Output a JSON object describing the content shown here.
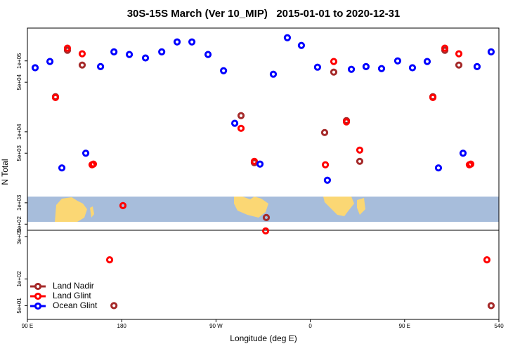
{
  "chart_data": [
    {
      "type": "scatter",
      "title": "30S-15S March (Ver 10_MIP)   2015-01-01 to 2020-12-31",
      "x_label": "Longitude (deg E)",
      "y_label": "N Total",
      "log_y": true,
      "xlim": [
        90,
        540
      ],
      "ylim": [
        410,
        290000
      ],
      "yticks": [
        {
          "value": 500,
          "label": "5e+02"
        },
        {
          "value": 1000,
          "label": "1e+03"
        },
        {
          "value": 5000,
          "label": "5e+03"
        },
        {
          "value": 10000,
          "label": "1e+04"
        },
        {
          "value": 50000,
          "label": "5e+04"
        },
        {
          "value": 100000,
          "label": "1e+05"
        }
      ],
      "series": [
        {
          "name": "Land Nadir",
          "color": "#a52a2a",
          "x": [
            116.8,
            128.2,
            142.3,
            293.9,
            306.6,
            318,
            373.7,
            382.4,
            394.5,
            407.2,
            477,
            488.4,
            501.8
          ],
          "values": [
            31300,
            141000,
            87300,
            16900,
            3670,
            620,
            9770,
            69500,
            14400,
            3840,
            31300,
            141000,
            87300
          ]
        },
        {
          "name": "Land Glint",
          "color": "#ff0000",
          "x": [
            116.8,
            128.2,
            142.3,
            151.7,
            153,
            181.2,
            293.9,
            306.6,
            374.4,
            382.4,
            394.5,
            407.2,
            477,
            488.4,
            501.8,
            511.8,
            513.2
          ],
          "values": [
            30500,
            151000,
            126000,
            3430,
            3510,
            912,
            11200,
            3840,
            3430,
            98000,
            13800,
            5530,
            30500,
            151000,
            126000,
            3430,
            3510
          ]
        },
        {
          "name": "Ocean Glint",
          "color": "#0000ff",
          "x": [
            97.4,
            111.5,
            122.9,
            145.7,
            159.8,
            172.6,
            187.3,
            202.7,
            218.2,
            232.9,
            247,
            262.4,
            277.2,
            287.9,
            312,
            324.7,
            338.1,
            351.5,
            366.9,
            376.3,
            399.2,
            413.2,
            428,
            443.4,
            457.5,
            471.6,
            482.3,
            505.8,
            519.2,
            532.6
          ],
          "values": [
            80000,
            98000,
            3100,
            5000,
            83000,
            134000,
            123000,
            110000,
            134000,
            185000,
            185000,
            123000,
            72600,
            13200,
            3510,
            64900,
            212000,
            165000,
            81500,
            2080,
            76000,
            83000,
            77800,
            100000,
            80000,
            98000,
            3100,
            5000,
            83000,
            134000
          ]
        }
      ]
    },
    {
      "type": "scatter",
      "log_y": true,
      "legend": "lower-left",
      "xlim": [
        90,
        540
      ],
      "ylim": [
        35,
        353
      ],
      "xticks": [
        {
          "value": 90,
          "label": "90 E"
        },
        180,
        {
          "value": 270,
          "label": "90 W"
        },
        {
          "value": 360,
          "label": "0"
        },
        {
          "value": 450,
          "label": "90 E"
        },
        540
      ],
      "yticks": [
        {
          "value": 50,
          "label": "5e+01"
        },
        {
          "value": 100,
          "label": "1e+02"
        },
        {
          "value": 300,
          "label": "3e+02"
        }
      ],
      "series": [
        {
          "name": "Land Nadir",
          "color": "#a52a2a",
          "x": [
            172.6,
            532.6
          ],
          "values": [
            50,
            50
          ]
        },
        {
          "name": "Land Glint",
          "color": "#ff0000",
          "x": [
            168.5,
            317.4,
            528.6
          ],
          "values": [
            164,
            347,
            164
          ]
        },
        {
          "name": "Ocean Glint",
          "color": "#0000ff",
          "x": [],
          "values": []
        }
      ]
    }
  ]
}
